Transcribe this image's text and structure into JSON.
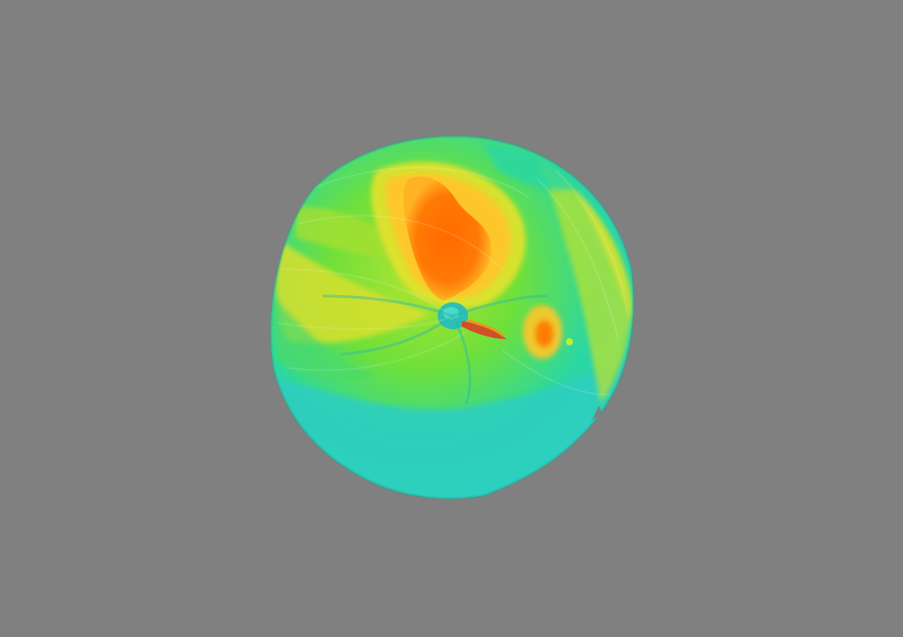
{
  "scene": {
    "background": "#808080",
    "colormap": [
      "#2ed1c4",
      "#2bd7a2",
      "#3fdb55",
      "#6fe03a",
      "#b3e332",
      "#e4e22f",
      "#ffc62a",
      "#ff8c12",
      "#ff6a00",
      "#e23f14"
    ]
  }
}
